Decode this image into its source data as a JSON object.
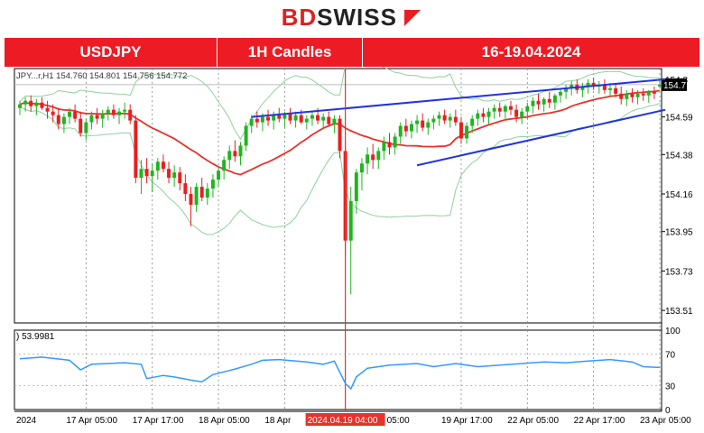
{
  "brand": {
    "name_a": "BD",
    "name_b": "SWISS"
  },
  "banner": {
    "symbol": "USDJPY",
    "timeframe": "1H Candles",
    "dates": "16-19.04.2024"
  },
  "chart_data": {
    "type": "line",
    "symbol_line": "JPY...r,H1  154.760 154.801 154.756 154.772",
    "price_label": "154.7",
    "y_ticks": [
      "154.8",
      "154.59",
      "154.38",
      "154.16",
      "153.95",
      "153.73",
      "153.51"
    ],
    "y_tick_values": [
      154.8,
      154.59,
      154.38,
      154.16,
      153.95,
      153.73,
      153.51
    ],
    "ylim": [
      153.44,
      154.86
    ],
    "x_labels": [
      "2024",
      "17 Apr 05:00",
      "17 Apr 17:00",
      "18 Apr 05:00",
      "18 Apr",
      "19 Apr 17:00",
      "22 Apr 05:00",
      "22 Apr 17:00",
      "23 Apr 05:00"
    ],
    "x_positions": [
      0,
      12,
      24,
      36,
      48,
      80,
      92,
      104,
      116
    ],
    "cursor_label": "2024.04.19 04:00",
    "cursor_index": 59,
    "cursor_label_suffix": "05:00",
    "n_bars": 117,
    "channel": {
      "upper": [
        [
          42,
          154.59
        ],
        [
          117,
          154.8
        ]
      ],
      "lower": [
        [
          72,
          154.32
        ],
        [
          117,
          154.63
        ]
      ]
    },
    "rsi": {
      "label": ") 53.9981",
      "ticks": [
        "100",
        "70",
        "30",
        "0"
      ],
      "tick_values": [
        100,
        70,
        30,
        0
      ],
      "keypoints": [
        [
          0,
          64
        ],
        [
          4,
          66
        ],
        [
          9,
          62
        ],
        [
          11,
          50
        ],
        [
          13,
          57
        ],
        [
          19,
          59
        ],
        [
          22,
          57
        ],
        [
          23,
          39
        ],
        [
          26,
          43
        ],
        [
          28,
          41
        ],
        [
          31,
          37
        ],
        [
          33,
          35
        ],
        [
          35,
          44
        ],
        [
          39,
          51
        ],
        [
          42,
          57
        ],
        [
          44,
          62
        ],
        [
          47,
          63
        ],
        [
          52,
          60
        ],
        [
          55,
          57
        ],
        [
          57,
          61
        ],
        [
          58,
          47
        ],
        [
          59,
          33
        ],
        [
          60,
          26
        ],
        [
          61,
          41
        ],
        [
          63,
          52
        ],
        [
          67,
          56
        ],
        [
          72,
          58
        ],
        [
          75,
          54
        ],
        [
          79,
          58
        ],
        [
          83,
          54
        ],
        [
          87,
          56
        ],
        [
          91,
          58
        ],
        [
          95,
          60
        ],
        [
          99,
          59
        ],
        [
          103,
          61
        ],
        [
          107,
          63
        ],
        [
          111,
          60
        ],
        [
          113,
          54
        ],
        [
          116,
          53
        ]
      ]
    },
    "candles": [
      [
        154.64,
        154.68,
        154.6,
        154.66
      ],
      [
        154.66,
        154.7,
        154.62,
        154.68
      ],
      [
        154.68,
        154.71,
        154.62,
        154.65
      ],
      [
        154.65,
        154.69,
        154.6,
        154.67
      ],
      [
        154.67,
        154.7,
        154.63,
        154.64
      ],
      [
        154.64,
        154.68,
        154.58,
        154.62
      ],
      [
        154.62,
        154.66,
        154.56,
        154.6
      ],
      [
        154.6,
        154.64,
        154.52,
        154.55
      ],
      [
        154.55,
        154.61,
        154.5,
        154.59
      ],
      [
        154.59,
        154.64,
        154.55,
        154.62
      ],
      [
        154.62,
        154.66,
        154.56,
        154.58
      ],
      [
        154.58,
        154.62,
        154.48,
        154.5
      ],
      [
        154.5,
        154.58,
        154.46,
        154.56
      ],
      [
        154.56,
        154.62,
        154.52,
        154.6
      ],
      [
        154.6,
        154.64,
        154.55,
        154.58
      ],
      [
        154.58,
        154.63,
        154.53,
        154.61
      ],
      [
        154.61,
        154.65,
        154.57,
        154.63
      ],
      [
        154.63,
        154.66,
        154.58,
        154.6
      ],
      [
        154.6,
        154.64,
        154.55,
        154.62
      ],
      [
        154.62,
        154.67,
        154.58,
        154.63
      ],
      [
        154.63,
        154.66,
        154.55,
        154.57
      ],
      [
        154.57,
        154.6,
        154.22,
        154.25
      ],
      [
        154.25,
        154.35,
        154.16,
        154.3
      ],
      [
        154.3,
        154.36,
        154.22,
        154.26
      ],
      [
        154.26,
        154.33,
        154.17,
        154.29
      ],
      [
        154.29,
        154.36,
        154.24,
        154.34
      ],
      [
        154.34,
        154.38,
        154.28,
        154.3
      ],
      [
        154.3,
        154.34,
        154.22,
        154.25
      ],
      [
        154.25,
        154.32,
        154.2,
        154.28
      ],
      [
        154.28,
        154.31,
        154.18,
        154.22
      ],
      [
        154.22,
        154.27,
        154.12,
        154.16
      ],
      [
        154.16,
        154.2,
        153.98,
        154.1
      ],
      [
        154.1,
        154.22,
        154.06,
        154.2
      ],
      [
        154.2,
        154.25,
        154.12,
        154.14
      ],
      [
        154.14,
        154.22,
        154.1,
        154.19
      ],
      [
        154.19,
        154.27,
        154.14,
        154.24
      ],
      [
        154.24,
        154.31,
        154.2,
        154.29
      ],
      [
        154.29,
        154.37,
        154.24,
        154.35
      ],
      [
        154.35,
        154.43,
        154.3,
        154.4
      ],
      [
        154.4,
        154.46,
        154.34,
        154.37
      ],
      [
        154.37,
        154.45,
        154.32,
        154.43
      ],
      [
        154.43,
        154.56,
        154.4,
        154.54
      ],
      [
        154.54,
        154.6,
        154.5,
        154.58
      ],
      [
        154.58,
        154.62,
        154.53,
        154.56
      ],
      [
        154.56,
        154.61,
        154.51,
        154.59
      ],
      [
        154.59,
        154.63,
        154.54,
        154.57
      ],
      [
        154.57,
        154.62,
        154.52,
        154.6
      ],
      [
        154.6,
        154.64,
        154.56,
        154.58
      ],
      [
        154.58,
        154.62,
        154.53,
        154.61
      ],
      [
        154.61,
        154.64,
        154.55,
        154.57
      ],
      [
        154.57,
        154.62,
        154.53,
        154.6
      ],
      [
        154.6,
        154.63,
        154.55,
        154.56
      ],
      [
        154.56,
        154.6,
        154.52,
        154.58
      ],
      [
        154.58,
        154.62,
        154.54,
        154.6
      ],
      [
        154.6,
        154.64,
        154.55,
        154.57
      ],
      [
        154.57,
        154.61,
        154.52,
        154.59
      ],
      [
        154.59,
        154.62,
        154.54,
        154.55
      ],
      [
        154.55,
        154.6,
        154.5,
        154.58
      ],
      [
        154.58,
        154.6,
        154.36,
        154.4
      ],
      [
        154.4,
        154.45,
        153.82,
        153.9
      ],
      [
        153.9,
        154.2,
        153.6,
        154.12
      ],
      [
        154.12,
        154.3,
        154.05,
        154.28
      ],
      [
        154.28,
        154.36,
        154.18,
        154.33
      ],
      [
        154.33,
        154.42,
        154.27,
        154.38
      ],
      [
        154.38,
        154.44,
        154.3,
        154.35
      ],
      [
        154.35,
        154.42,
        154.3,
        154.4
      ],
      [
        154.4,
        154.48,
        154.35,
        154.45
      ],
      [
        154.45,
        154.5,
        154.38,
        154.42
      ],
      [
        154.42,
        154.5,
        154.38,
        154.48
      ],
      [
        154.48,
        154.56,
        154.44,
        154.54
      ],
      [
        154.54,
        154.58,
        154.48,
        154.51
      ],
      [
        154.51,
        154.57,
        154.47,
        154.55
      ],
      [
        154.55,
        154.6,
        154.5,
        154.57
      ],
      [
        154.57,
        154.61,
        154.51,
        154.53
      ],
      [
        154.53,
        154.58,
        154.49,
        154.56
      ],
      [
        154.56,
        154.6,
        154.52,
        154.58
      ],
      [
        154.58,
        154.62,
        154.54,
        154.6
      ],
      [
        154.6,
        154.63,
        154.55,
        154.57
      ],
      [
        154.57,
        154.61,
        154.53,
        154.59
      ],
      [
        154.59,
        154.63,
        154.54,
        154.56
      ],
      [
        154.56,
        154.59,
        154.44,
        154.47
      ],
      [
        154.47,
        154.56,
        154.44,
        154.54
      ],
      [
        154.54,
        154.6,
        154.5,
        154.58
      ],
      [
        154.58,
        154.63,
        154.54,
        154.61
      ],
      [
        154.61,
        154.64,
        154.56,
        154.59
      ],
      [
        154.59,
        154.64,
        154.55,
        154.62
      ],
      [
        154.62,
        154.66,
        154.58,
        154.64
      ],
      [
        154.64,
        154.67,
        154.59,
        154.62
      ],
      [
        154.62,
        154.66,
        154.58,
        154.65
      ],
      [
        154.65,
        154.68,
        154.6,
        154.63
      ],
      [
        154.63,
        154.66,
        154.56,
        154.59
      ],
      [
        154.59,
        154.64,
        154.55,
        154.62
      ],
      [
        154.62,
        154.67,
        154.58,
        154.65
      ],
      [
        154.65,
        154.7,
        154.61,
        154.68
      ],
      [
        154.68,
        154.72,
        154.63,
        154.66
      ],
      [
        154.66,
        154.7,
        154.62,
        154.69
      ],
      [
        154.69,
        154.73,
        154.64,
        154.67
      ],
      [
        154.67,
        154.72,
        154.63,
        154.71
      ],
      [
        154.71,
        154.75,
        154.67,
        154.73
      ],
      [
        154.73,
        154.77,
        154.69,
        154.75
      ],
      [
        154.75,
        154.79,
        154.71,
        154.77
      ],
      [
        154.77,
        154.8,
        154.72,
        154.74
      ],
      [
        154.74,
        154.78,
        154.7,
        154.76
      ],
      [
        154.76,
        154.8,
        154.72,
        154.78
      ],
      [
        154.78,
        154.81,
        154.74,
        154.76
      ],
      [
        154.76,
        154.79,
        154.72,
        154.77
      ],
      [
        154.77,
        154.8,
        154.72,
        154.74
      ],
      [
        154.74,
        154.78,
        154.7,
        154.75
      ],
      [
        154.75,
        154.78,
        154.7,
        154.72
      ],
      [
        154.72,
        154.76,
        154.66,
        154.69
      ],
      [
        154.69,
        154.74,
        154.65,
        154.72
      ],
      [
        154.72,
        154.75,
        154.67,
        154.7
      ],
      [
        154.7,
        154.74,
        154.66,
        154.72
      ],
      [
        154.72,
        154.75,
        154.68,
        154.71
      ],
      [
        154.71,
        154.74,
        154.67,
        154.73
      ],
      [
        154.73,
        154.76,
        154.69,
        154.72
      ],
      [
        154.76,
        154.8,
        154.75,
        154.77
      ]
    ]
  }
}
